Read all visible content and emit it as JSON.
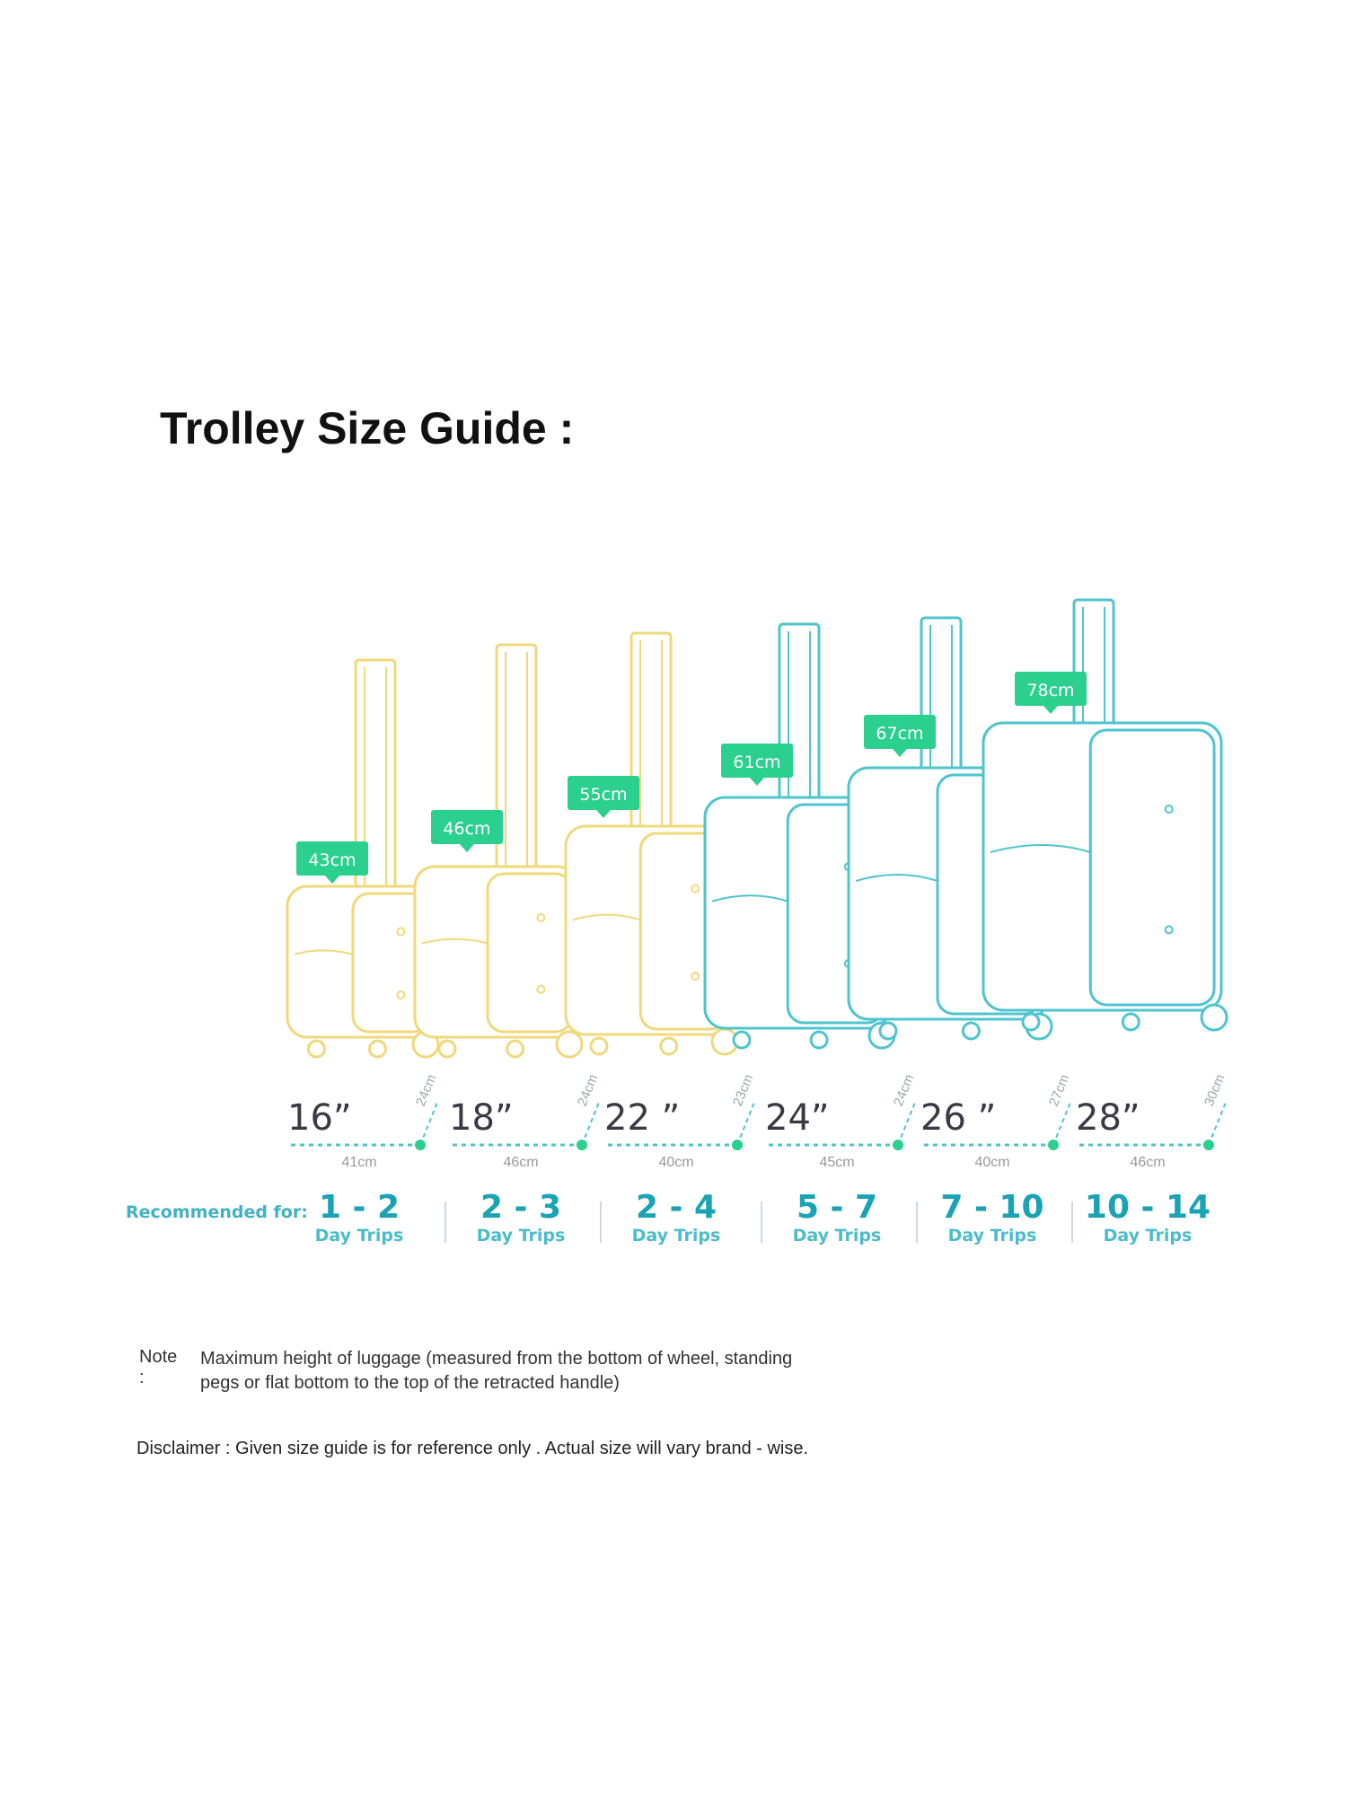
{
  "title": "Trolley Size Guide :",
  "colors": {
    "small": "#f0d97a",
    "large": "#4ec4cf",
    "tag": "#2bcf8e",
    "trip": "#1aa3b5"
  },
  "recommended_label": "Recommended for:",
  "suitcases": [
    {
      "size": "16”",
      "height": "43cm",
      "depth": "24cm",
      "width": "41cm",
      "trips": "1 - 2",
      "trips_unit": "Day Trips",
      "color": "small"
    },
    {
      "size": "18”",
      "height": "46cm",
      "depth": "24cm",
      "width": "46cm",
      "trips": "2 - 3",
      "trips_unit": "Day Trips",
      "color": "small"
    },
    {
      "size": "22 ”",
      "height": "55cm",
      "depth": "23cm",
      "width": "40cm",
      "trips": "2 - 4",
      "trips_unit": "Day Trips",
      "color": "small"
    },
    {
      "size": "24”",
      "height": "61cm",
      "depth": "24cm",
      "width": "45cm",
      "trips": "5 - 7",
      "trips_unit": "Day Trips",
      "color": "large"
    },
    {
      "size": "26 ”",
      "height": "67cm",
      "depth": "27cm",
      "width": "40cm",
      "trips": "7 - 10",
      "trips_unit": "Day Trips",
      "color": "large"
    },
    {
      "size": "28”",
      "height": "78cm",
      "depth": "30cm",
      "width": "46cm",
      "trips": "10 - 14",
      "trips_unit": "Day Trips",
      "color": "large"
    }
  ],
  "note": {
    "label": "Note :",
    "text": "Maximum height of luggage (measured from the bottom of wheel, standing pegs or flat bottom to the top of the retracted handle)"
  },
  "disclaimer": "Disclaimer : Given size guide is for reference only . Actual size will vary brand - wise."
}
